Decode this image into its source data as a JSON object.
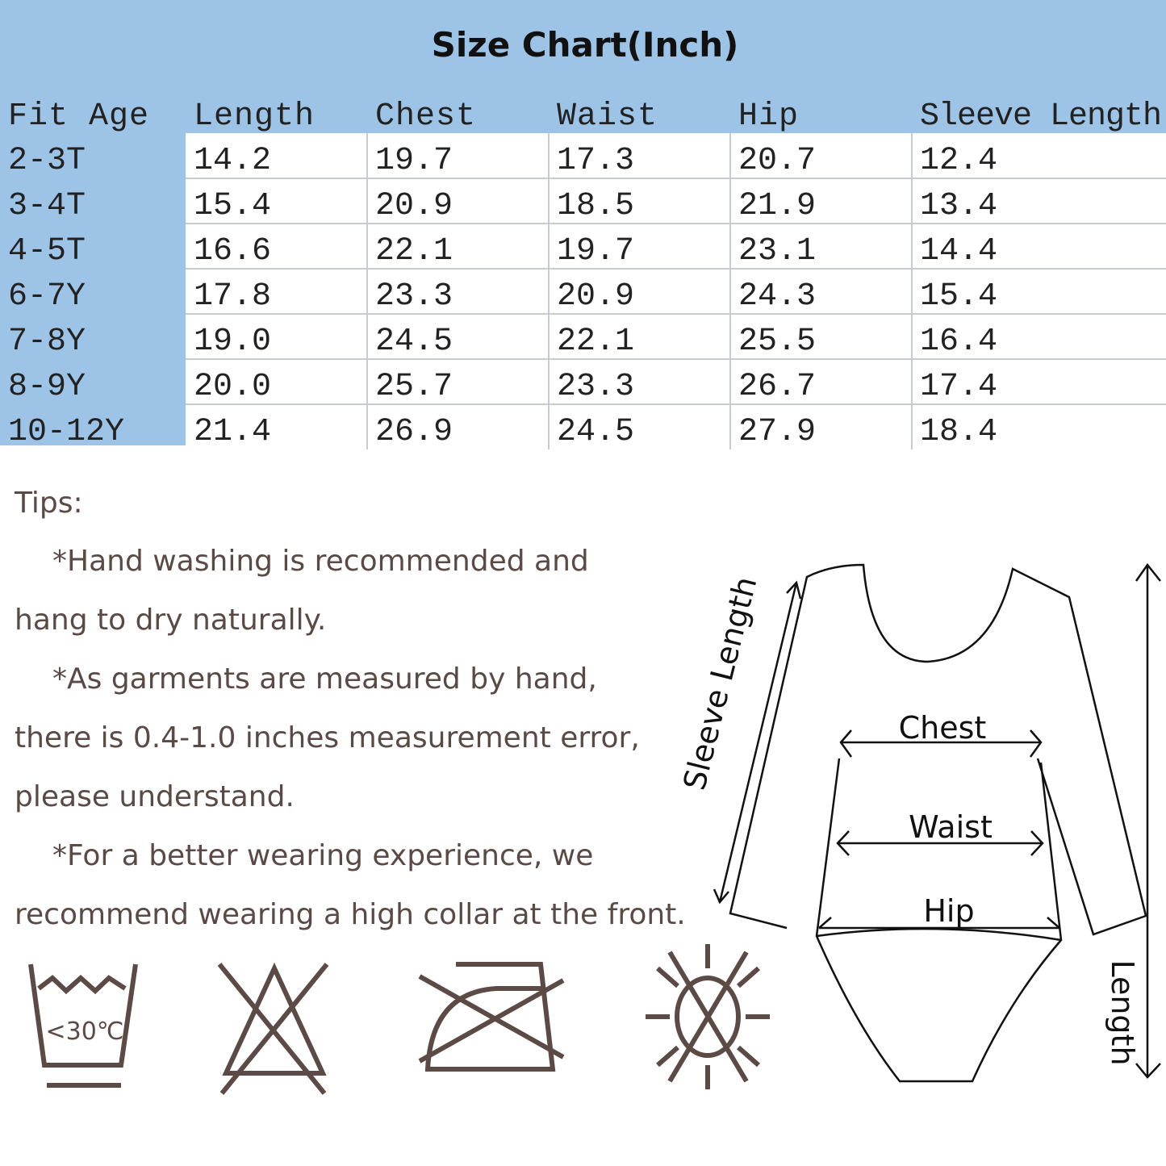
{
  "title": "Size Chart(Inch)",
  "table": {
    "header": [
      "Fit Age",
      "Length",
      "Chest",
      "Waist",
      "Hip",
      "Sleeve Length"
    ],
    "rows": [
      [
        "2-3T",
        "14.2",
        "19.7",
        "17.3",
        "20.7",
        "12.4"
      ],
      [
        "3-4T",
        "15.4",
        "20.9",
        "18.5",
        "21.9",
        "13.4"
      ],
      [
        "4-5T",
        "16.6",
        "22.1",
        "19.7",
        "23.1",
        "14.4"
      ],
      [
        "6-7Y",
        "17.8",
        "23.3",
        "20.9",
        "24.3",
        "15.4"
      ],
      [
        "7-8Y",
        "19.0",
        "24.5",
        "22.1",
        "25.5",
        "16.4"
      ],
      [
        "8-9Y",
        "20.0",
        "25.7",
        "23.3",
        "26.7",
        "17.4"
      ],
      [
        "10-12Y",
        "21.4",
        "26.9",
        "24.5",
        "27.9",
        "18.4"
      ]
    ]
  },
  "tips": {
    "title": "Tips:",
    "lines": [
      "*Hand washing is recommended and",
      "hang to dry naturally.",
      "*As garments are measured by hand,",
      "there is 0.4-1.0 inches measurement error,",
      "please understand.",
      "*For a better wearing experience, we",
      "recommend wearing a high collar at the front."
    ]
  },
  "care": {
    "wash_label": "<30℃"
  },
  "diagram": {
    "sleeve": "Sleeve Length",
    "chest": "Chest",
    "waist": "Waist",
    "hip": "Hip",
    "length": "Length"
  }
}
